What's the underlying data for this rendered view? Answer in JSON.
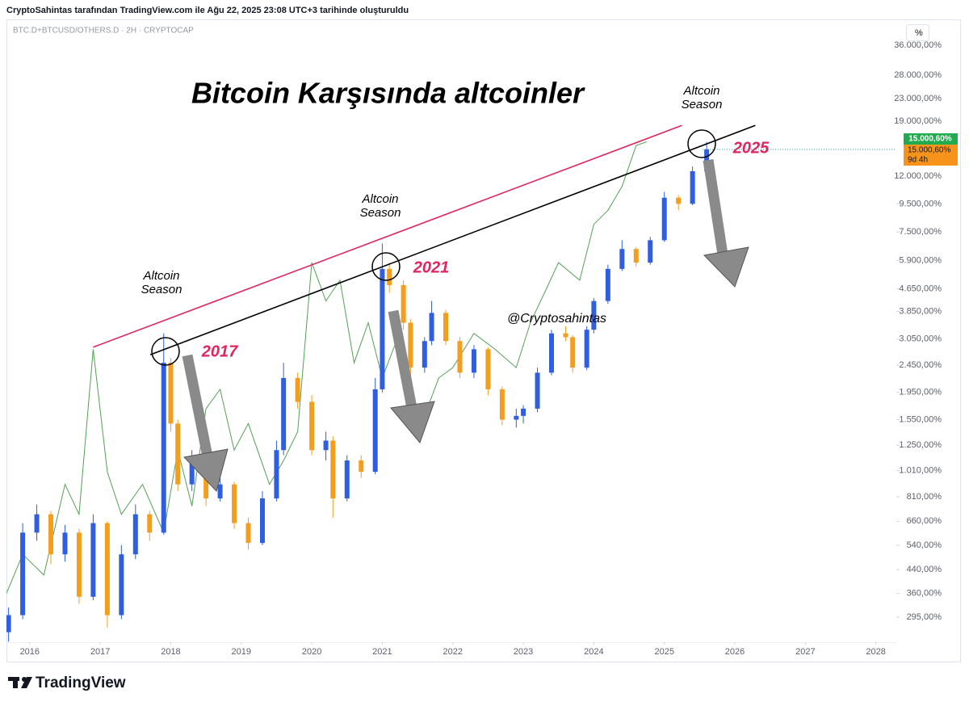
{
  "header": "CryptoSahintas tarafından TradingView.com ile Ağu 22, 2025 23:08 UTC+3 tarihinde oluşturuldu",
  "footer": "TradingView",
  "chart_data": {
    "type": "candlestick",
    "symbol": "BTC.D+BTCUSD/OTHERS.D · 2H · CRYPTOCAP",
    "scale_toggle": "%",
    "title": "Bitcoin Karşısında altcoinler",
    "log_scale": true,
    "up_color": "#2f5fe0",
    "down_color": "#f59e1d",
    "x": [
      2015.7,
      2015.9,
      2016.1,
      2016.3,
      2016.5,
      2016.7,
      2016.9,
      2017.1,
      2017.3,
      2017.5,
      2017.7,
      2017.9,
      2018.0,
      2018.1,
      2018.3,
      2018.5,
      2018.7,
      2018.9,
      2019.1,
      2019.3,
      2019.5,
      2019.6,
      2019.8,
      2020.0,
      2020.2,
      2020.3,
      2020.5,
      2020.7,
      2020.9,
      2021.0,
      2021.1,
      2021.3,
      2021.4,
      2021.6,
      2021.7,
      2021.9,
      2022.1,
      2022.3,
      2022.5,
      2022.7,
      2022.9,
      2023.0,
      2023.2,
      2023.4,
      2023.6,
      2023.7,
      2023.9,
      2024.0,
      2024.2,
      2024.4,
      2024.6,
      2024.8,
      2025.0,
      2025.2,
      2025.4,
      2025.6
    ],
    "open": [
      260,
      300,
      600,
      700,
      500,
      600,
      350,
      650,
      300,
      500,
      700,
      600,
      2500,
      1500,
      900,
      1100,
      800,
      900,
      650,
      550,
      800,
      1200,
      2200,
      1800,
      1200,
      1300,
      800,
      1100,
      1000,
      2000,
      5500,
      4800,
      3500,
      2400,
      3000,
      3800,
      3000,
      2300,
      2800,
      2000,
      1550,
      1600,
      1700,
      2300,
      3200,
      3100,
      2400,
      3300,
      4200,
      5500,
      6500,
      5800,
      7000,
      10000,
      9500,
      12500
    ],
    "high": [
      320,
      650,
      760,
      720,
      640,
      620,
      700,
      660,
      540,
      760,
      720,
      3200,
      2600,
      1550,
      1200,
      1150,
      950,
      920,
      680,
      850,
      1300,
      2500,
      2300,
      1900,
      1400,
      1350,
      1150,
      1150,
      2200,
      6800,
      5800,
      5000,
      3600,
      3100,
      4200,
      3900,
      3100,
      2900,
      2850,
      2050,
      1700,
      1750,
      2400,
      3300,
      3400,
      3150,
      3400,
      4300,
      5700,
      7000,
      6600,
      7200,
      10500,
      10200,
      13000,
      16000
    ],
    "low": [
      240,
      290,
      560,
      460,
      470,
      330,
      340,
      270,
      290,
      480,
      560,
      590,
      1400,
      850,
      850,
      750,
      780,
      620,
      520,
      540,
      780,
      1150,
      1700,
      1150,
      1100,
      680,
      780,
      950,
      980,
      1950,
      4500,
      3300,
      2200,
      2300,
      2900,
      2900,
      2200,
      2200,
      1900,
      1480,
      1450,
      1500,
      1650,
      2250,
      3000,
      2300,
      2350,
      3200,
      4100,
      5400,
      5600,
      5700,
      6900,
      9000,
      9400,
      12400
    ],
    "close": [
      300,
      600,
      700,
      500,
      600,
      350,
      650,
      300,
      500,
      700,
      600,
      2500,
      1500,
      900,
      1100,
      800,
      900,
      650,
      550,
      800,
      1200,
      2200,
      1800,
      1200,
      1300,
      800,
      1100,
      1000,
      2000,
      5500,
      4800,
      3500,
      2400,
      3000,
      3800,
      3000,
      2300,
      2800,
      2000,
      1550,
      1600,
      1700,
      2300,
      3200,
      3100,
      2400,
      3300,
      4200,
      5500,
      6500,
      5800,
      7000,
      10000,
      9500,
      12500,
      15000
    ],
    "series": [
      {
        "type": "line",
        "color": "#55a055",
        "x": [
          2015.67,
          2015.9,
          2016.2,
          2016.5,
          2016.7,
          2016.9,
          2017.1,
          2017.3,
          2017.6,
          2017.9,
          2018.1,
          2018.3,
          2018.5,
          2018.7,
          2018.9,
          2019.1,
          2019.4,
          2019.6,
          2019.8,
          2020.0,
          2020.2,
          2020.4,
          2020.6,
          2020.8,
          2021.0,
          2021.2,
          2021.4,
          2021.6,
          2021.8,
          2022.0,
          2022.3,
          2022.6,
          2022.9,
          2023.1,
          2023.3,
          2023.5,
          2023.8,
          2024.0,
          2024.2,
          2024.4,
          2024.6,
          2024.75
        ],
        "values": [
          360,
          500,
          420,
          900,
          700,
          2800,
          1000,
          700,
          900,
          600,
          1200,
          750,
          1700,
          2000,
          1200,
          1500,
          900,
          1100,
          1400,
          5800,
          4200,
          5000,
          2500,
          3500,
          2200,
          3000,
          1800,
          1600,
          2200,
          2400,
          3200,
          2800,
          2400,
          3500,
          4500,
          5800,
          5000,
          8000,
          9000,
          11000,
          15500,
          16000
        ]
      }
    ],
    "trendlines": [
      {
        "type": "line",
        "color": "#e0245e",
        "x": [
          2016.9,
          2025.25
        ],
        "values": [
          2850,
          18360
        ]
      },
      {
        "type": "line",
        "color": "#000000",
        "x": [
          2017.71,
          2026.29
        ],
        "values": [
          2675,
          18360
        ]
      }
    ],
    "annotations": {
      "season_labels": [
        [
          "Altcoin",
          "Season"
        ],
        [
          "Altcoin",
          "Season"
        ],
        [
          "Altcoin",
          "Season"
        ]
      ],
      "year_labels": [
        "2017",
        "2021",
        "2025"
      ],
      "watermark": "@Cryptosahintas"
    },
    "last_price": {
      "value": 15000.6,
      "label": "15.000,60%"
    },
    "price_label": "15.000,60%",
    "countdown": "9d 4h",
    "xlim": [
      2015.67,
      2028.29
    ],
    "ylim": [
      239,
      43550
    ],
    "xticks": [
      2016,
      2017,
      2018,
      2019,
      2020,
      2021,
      2022,
      2023,
      2024,
      2025,
      2026,
      2027,
      2028
    ],
    "yticks": [
      {
        "value": 295,
        "label": "295,00%"
      },
      {
        "value": 360,
        "label": "360,00%"
      },
      {
        "value": 440,
        "label": "440,00%"
      },
      {
        "value": 540,
        "label": "540,00%"
      },
      {
        "value": 660,
        "label": "660,00%"
      },
      {
        "value": 810,
        "label": "810,00%"
      },
      {
        "value": 1010,
        "label": "1.010,00%"
      },
      {
        "value": 1250,
        "label": "1.250,00%"
      },
      {
        "value": 1550,
        "label": "1.550,00%"
      },
      {
        "value": 1950,
        "label": "1.950,00%"
      },
      {
        "value": 2450,
        "label": "2.450,00%"
      },
      {
        "value": 3050,
        "label": "3.050,00%"
      },
      {
        "value": 3850,
        "label": "3.850,00%"
      },
      {
        "value": 4650,
        "label": "4.650,00%"
      },
      {
        "value": 5900,
        "label": "5.900,00%"
      },
      {
        "value": 7500,
        "label": "7.500,00%"
      },
      {
        "value": 9500,
        "label": "9.500,00%"
      },
      {
        "value": 12000,
        "label": "12.000,00%"
      },
      {
        "value": 19000,
        "label": "19.000,00%"
      },
      {
        "value": 23000,
        "label": "23.000,00%"
      },
      {
        "value": 28000,
        "label": "28.000,00%"
      },
      {
        "value": 36000,
        "label": "36.000,00%"
      }
    ]
  }
}
